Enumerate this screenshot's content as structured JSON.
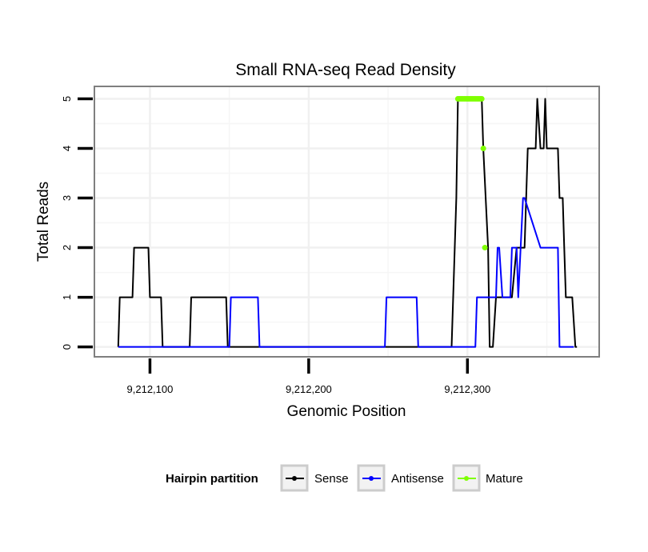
{
  "chart_data": {
    "type": "line",
    "title": "Small RNA-seq Read Density",
    "xlabel": "Genomic Position",
    "ylabel": "Total Reads",
    "xlim": [
      9212065,
      9212383
    ],
    "ylim": [
      -0.2,
      5.25
    ],
    "x_ticks": [
      9212100,
      9212200,
      9212300
    ],
    "x_tick_labels": [
      "9,212,100",
      "9,212,200",
      "9,212,300"
    ],
    "y_ticks": [
      0,
      1,
      2,
      3,
      4,
      5
    ],
    "y_tick_labels": [
      "0",
      "1",
      "2",
      "3",
      "4",
      "5"
    ],
    "grid": true,
    "legend": {
      "title": "Hairpin partition",
      "position": "bottom",
      "items": [
        "Sense",
        "Antisense",
        "Mature"
      ]
    },
    "colors": {
      "Sense": "#000000",
      "Antisense": "#0000ff",
      "Mature": "#7fff00"
    },
    "series": [
      {
        "name": "Sense",
        "x": [
          9212080,
          9212081,
          9212089,
          9212090,
          9212099,
          9212100,
          9212107,
          9212108,
          9212125,
          9212126,
          9212148,
          9212149,
          9212290,
          9212293,
          9212294,
          9212309,
          9212310,
          9212313,
          9212314,
          9212316,
          9212318,
          9212319,
          9212328,
          9212331,
          9212336,
          9212337,
          9212338,
          9212343,
          9212344,
          9212346,
          9212348,
          9212349,
          9212350,
          9212351,
          9212357,
          9212358,
          9212360,
          9212361,
          9212362,
          9212366,
          9212368,
          9212369
        ],
        "y": [
          0,
          1,
          1,
          2,
          2,
          1,
          1,
          0,
          0,
          1,
          1,
          0,
          0,
          3,
          5,
          5,
          4,
          2,
          0,
          0,
          1,
          1,
          1,
          2,
          2,
          3,
          4,
          4,
          5,
          4,
          4,
          5,
          4,
          4,
          4,
          3,
          3,
          2,
          1,
          1,
          0,
          0
        ]
      },
      {
        "name": "Antisense",
        "x": [
          9212080,
          9212150,
          9212151,
          9212168,
          9212169,
          9212248,
          9212249,
          9212268,
          9212269,
          9212291,
          9212294,
          9212305,
          9212306,
          9212318,
          9212319,
          9212320,
          9212322,
          9212323,
          9212327,
          9212328,
          9212331,
          9212332,
          9212335,
          9212336,
          9212346,
          9212347,
          9212348,
          9212357,
          9212358,
          9212367
        ],
        "y": [
          0,
          0,
          1,
          1,
          0,
          0,
          1,
          1,
          0,
          0,
          0,
          0,
          1,
          1,
          2,
          2,
          1,
          1,
          1,
          2,
          2,
          1,
          3,
          3,
          2,
          2,
          2,
          2,
          0,
          0
        ]
      },
      {
        "name": "Mature",
        "x": [
          9212294,
          9212295,
          9212296,
          9212297,
          9212298,
          9212299,
          9212300,
          9212301,
          9212302,
          9212303,
          9212304,
          9212305,
          9212306,
          9212307,
          9212308,
          9212309,
          9212310,
          9212311
        ],
        "y": [
          5,
          5,
          5,
          5,
          5,
          5,
          5,
          5,
          5,
          5,
          5,
          5,
          5,
          5,
          5,
          5,
          4,
          2
        ]
      }
    ]
  }
}
